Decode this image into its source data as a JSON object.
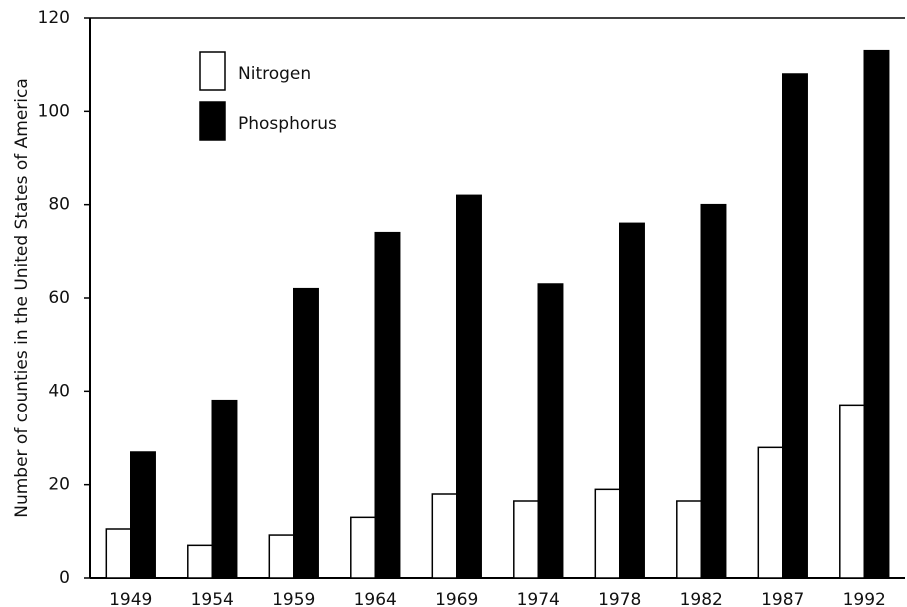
{
  "chart_data": {
    "type": "bar",
    "y_label": "Number of counties in the United States of America",
    "categories": [
      "1949",
      "1954",
      "1959",
      "1964",
      "1969",
      "1974",
      "1978",
      "1982",
      "1987",
      "1992"
    ],
    "series": [
      {
        "name": "Nitrogen",
        "color": "#ffffff",
        "values": [
          10.5,
          7,
          9.2,
          13,
          18,
          16.5,
          19,
          16.5,
          28,
          37
        ]
      },
      {
        "name": "Phosphorus",
        "color": "#000000",
        "values": [
          27,
          38,
          62,
          74,
          82,
          63,
          76,
          80,
          108,
          113
        ]
      }
    ],
    "ylim": [
      0,
      120
    ],
    "yticks": [
      0,
      20,
      40,
      60,
      80,
      100,
      120
    ],
    "grid": false,
    "legend": "upper-left"
  }
}
